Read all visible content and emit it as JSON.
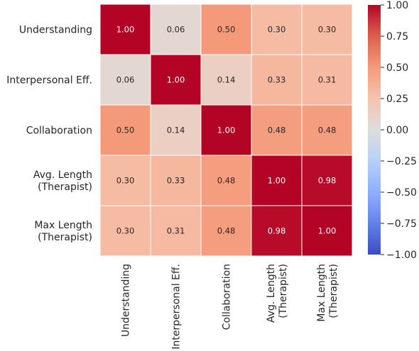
{
  "chart_data": {
    "type": "heatmap",
    "rows": [
      [
        "Understanding"
      ],
      [
        "Interpersonal Eff."
      ],
      [
        "Collaboration"
      ],
      [
        "Avg. Length",
        "(Therapist)"
      ],
      [
        "Max Length",
        "(Therapist)"
      ]
    ],
    "columns": [
      [
        "Understanding"
      ],
      [
        "Interpersonal Eff."
      ],
      [
        "Collaboration"
      ],
      [
        "Avg. Length",
        "(Therapist)"
      ],
      [
        "Max Length",
        "(Therapist)"
      ]
    ],
    "values": [
      [
        1.0,
        0.06,
        0.5,
        0.3,
        0.3
      ],
      [
        0.06,
        1.0,
        0.14,
        0.33,
        0.31
      ],
      [
        0.5,
        0.14,
        1.0,
        0.48,
        0.48
      ],
      [
        0.3,
        0.33,
        0.48,
        1.0,
        0.98
      ],
      [
        0.3,
        0.31,
        0.48,
        0.98,
        1.0
      ]
    ],
    "value_labels": [
      [
        "1.00",
        "0.06",
        "0.50",
        "0.30",
        "0.30"
      ],
      [
        "0.06",
        "1.00",
        "0.14",
        "0.33",
        "0.31"
      ],
      [
        "0.50",
        "0.14",
        "1.00",
        "0.48",
        "0.48"
      ],
      [
        "0.30",
        "0.33",
        "0.48",
        "1.00",
        "0.98"
      ],
      [
        "0.30",
        "0.31",
        "0.48",
        "0.98",
        "1.00"
      ]
    ],
    "colormap": "coolwarm",
    "vmin": -1.0,
    "vmax": 1.0,
    "colorbar": {
      "ticks": [
        1.0,
        0.75,
        0.5,
        0.25,
        0.0,
        -0.25,
        -0.5,
        -0.75,
        -1.0
      ],
      "tick_labels": [
        "1.00",
        "0.75",
        "0.50",
        "0.25",
        "0.00",
        "−0.25",
        "−0.50",
        "−0.75",
        "−1.00"
      ],
      "placement": "right"
    },
    "grid": "white cell borders"
  }
}
